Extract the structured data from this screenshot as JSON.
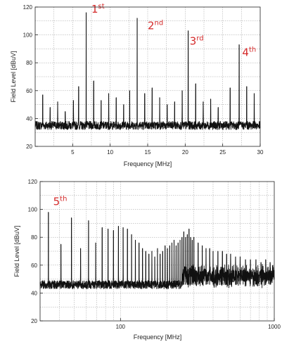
{
  "colors": {
    "trace": "#111111",
    "grid": "#9a9a9a",
    "annotation": "#d42a2a",
    "frame": "#222222"
  },
  "chart_data": [
    {
      "type": "line",
      "xscale": "linear",
      "xlabel": "Frequency [MHz]",
      "ylabel": "Field Level [dBuV]",
      "xlim": [
        0,
        30
      ],
      "ylim": [
        20,
        120
      ],
      "xticks": [
        5,
        10,
        15,
        20,
        25,
        30
      ],
      "yticks": [
        20,
        40,
        60,
        80,
        100,
        120
      ],
      "noise_floor": 35,
      "grid": true,
      "legend": "none",
      "peaks": [
        {
          "x": 1.0,
          "y": 57
        },
        {
          "x": 2.0,
          "y": 48
        },
        {
          "x": 3.0,
          "y": 52
        },
        {
          "x": 4.0,
          "y": 45
        },
        {
          "x": 5.1,
          "y": 53
        },
        {
          "x": 5.8,
          "y": 63
        },
        {
          "x": 6.8,
          "y": 116
        },
        {
          "x": 7.8,
          "y": 67
        },
        {
          "x": 8.8,
          "y": 53
        },
        {
          "x": 9.8,
          "y": 58
        },
        {
          "x": 10.8,
          "y": 55
        },
        {
          "x": 11.8,
          "y": 50
        },
        {
          "x": 12.6,
          "y": 60
        },
        {
          "x": 13.6,
          "y": 112
        },
        {
          "x": 14.6,
          "y": 58
        },
        {
          "x": 15.6,
          "y": 62
        },
        {
          "x": 16.6,
          "y": 55
        },
        {
          "x": 17.6,
          "y": 50
        },
        {
          "x": 18.6,
          "y": 52
        },
        {
          "x": 19.6,
          "y": 60
        },
        {
          "x": 20.4,
          "y": 103
        },
        {
          "x": 21.4,
          "y": 65
        },
        {
          "x": 22.4,
          "y": 52
        },
        {
          "x": 23.4,
          "y": 54
        },
        {
          "x": 24.4,
          "y": 48
        },
        {
          "x": 26.0,
          "y": 62
        },
        {
          "x": 27.2,
          "y": 93
        },
        {
          "x": 28.2,
          "y": 63
        },
        {
          "x": 29.2,
          "y": 58
        }
      ],
      "annotations": [
        {
          "base": "1",
          "sup": "st",
          "x": 7.5,
          "y": 116
        },
        {
          "base": "2",
          "sup": "nd",
          "x": 15.0,
          "y": 104
        },
        {
          "base": "3",
          "sup": "rd",
          "x": 20.6,
          "y": 93
        },
        {
          "base": "4",
          "sup": "th",
          "x": 27.6,
          "y": 85
        }
      ]
    },
    {
      "type": "line",
      "xscale": "log",
      "xlabel": "Frequency [MHz]",
      "ylabel": "Field Level [dBuV]",
      "xlim": [
        30,
        1000
      ],
      "ylim": [
        20,
        120
      ],
      "xticks": [
        100,
        1000
      ],
      "yticks": [
        20,
        40,
        60,
        80,
        100,
        120
      ],
      "noise_floor": 46,
      "grid": true,
      "legend": "none",
      "peaks": [
        {
          "x": 34,
          "y": 98
        },
        {
          "x": 41,
          "y": 75
        },
        {
          "x": 48,
          "y": 94
        },
        {
          "x": 55,
          "y": 72
        },
        {
          "x": 62,
          "y": 92
        },
        {
          "x": 69,
          "y": 76
        },
        {
          "x": 76,
          "y": 87
        },
        {
          "x": 83,
          "y": 86
        },
        {
          "x": 90,
          "y": 85
        },
        {
          "x": 97,
          "y": 88
        },
        {
          "x": 104,
          "y": 87
        },
        {
          "x": 111,
          "y": 86
        },
        {
          "x": 118,
          "y": 82
        },
        {
          "x": 125,
          "y": 78
        },
        {
          "x": 132,
          "y": 76
        },
        {
          "x": 139,
          "y": 72
        },
        {
          "x": 146,
          "y": 70
        },
        {
          "x": 153,
          "y": 68
        },
        {
          "x": 160,
          "y": 70
        },
        {
          "x": 167,
          "y": 66
        },
        {
          "x": 174,
          "y": 72
        },
        {
          "x": 181,
          "y": 68
        },
        {
          "x": 188,
          "y": 70
        },
        {
          "x": 195,
          "y": 74
        },
        {
          "x": 202,
          "y": 72
        },
        {
          "x": 209,
          "y": 74
        },
        {
          "x": 216,
          "y": 76
        },
        {
          "x": 223,
          "y": 78
        },
        {
          "x": 230,
          "y": 74
        },
        {
          "x": 237,
          "y": 76
        },
        {
          "x": 244,
          "y": 78
        },
        {
          "x": 251,
          "y": 80
        },
        {
          "x": 258,
          "y": 84
        },
        {
          "x": 265,
          "y": 80
        },
        {
          "x": 272,
          "y": 82
        },
        {
          "x": 279,
          "y": 86
        },
        {
          "x": 286,
          "y": 80
        },
        {
          "x": 293,
          "y": 78
        },
        {
          "x": 300,
          "y": 80
        },
        {
          "x": 320,
          "y": 76
        },
        {
          "x": 340,
          "y": 74
        },
        {
          "x": 360,
          "y": 72
        },
        {
          "x": 380,
          "y": 72
        },
        {
          "x": 400,
          "y": 70
        },
        {
          "x": 430,
          "y": 70
        },
        {
          "x": 460,
          "y": 70
        },
        {
          "x": 490,
          "y": 68
        },
        {
          "x": 520,
          "y": 68
        },
        {
          "x": 560,
          "y": 66
        },
        {
          "x": 600,
          "y": 66
        },
        {
          "x": 650,
          "y": 64
        },
        {
          "x": 700,
          "y": 64
        },
        {
          "x": 760,
          "y": 64
        },
        {
          "x": 820,
          "y": 62
        },
        {
          "x": 880,
          "y": 64
        },
        {
          "x": 940,
          "y": 62
        }
      ],
      "annotations": [
        {
          "base": "5",
          "sup": "th",
          "x": 36.5,
          "y": 103
        }
      ]
    }
  ]
}
